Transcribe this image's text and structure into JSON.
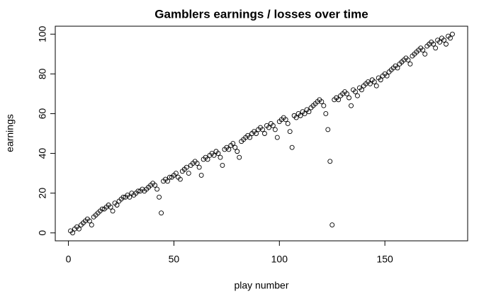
{
  "chart_data": {
    "type": "scatter",
    "title": "Gamblers earnings / losses over time",
    "x_label": "play number",
    "y_label": "earnings",
    "xlim": [
      -6.24,
      189.24
    ],
    "ylim": [
      -4,
      104
    ],
    "xticks": [
      0,
      50,
      100,
      150
    ],
    "yticks": [
      0,
      20,
      40,
      60,
      80,
      100
    ],
    "color": "#000000",
    "x": [
      1,
      2,
      3,
      4,
      5,
      6,
      7,
      8,
      9,
      10,
      11,
      12,
      13,
      14,
      15,
      16,
      17,
      18,
      19,
      20,
      21,
      22,
      23,
      24,
      25,
      26,
      27,
      28,
      29,
      30,
      31,
      32,
      33,
      34,
      35,
      36,
      37,
      38,
      39,
      40,
      41,
      42,
      43,
      44,
      45,
      46,
      47,
      48,
      49,
      50,
      51,
      52,
      53,
      54,
      55,
      56,
      57,
      58,
      59,
      60,
      61,
      62,
      63,
      64,
      65,
      66,
      67,
      68,
      69,
      70,
      71,
      72,
      73,
      74,
      75,
      76,
      77,
      78,
      79,
      80,
      81,
      82,
      83,
      84,
      85,
      86,
      87,
      88,
      89,
      90,
      91,
      92,
      93,
      94,
      95,
      96,
      97,
      98,
      99,
      100,
      101,
      102,
      103,
      104,
      105,
      106,
      107,
      108,
      109,
      110,
      111,
      112,
      113,
      114,
      115,
      116,
      117,
      118,
      119,
      120,
      121,
      122,
      123,
      124,
      125,
      126,
      127,
      128,
      129,
      130,
      131,
      132,
      133,
      134,
      135,
      136,
      137,
      138,
      139,
      140,
      141,
      142,
      143,
      144,
      145,
      146,
      147,
      148,
      149,
      150,
      151,
      152,
      153,
      154,
      155,
      156,
      157,
      158,
      159,
      160,
      161,
      162,
      163,
      164,
      165,
      166,
      167,
      168,
      169,
      170,
      171,
      172,
      173,
      174,
      175,
      176,
      177,
      178,
      179,
      180,
      181,
      182
    ],
    "values": [
      1,
      0,
      2,
      3,
      2,
      4,
      5,
      6,
      7,
      6,
      4,
      8,
      9,
      10,
      11,
      12,
      12,
      13,
      14,
      13,
      11,
      15,
      14,
      16,
      17,
      18,
      18,
      19,
      18,
      20,
      19,
      20,
      21,
      21,
      22,
      21,
      22,
      23,
      24,
      25,
      24,
      22,
      18,
      10,
      26,
      27,
      26,
      28,
      28,
      29,
      30,
      28,
      27,
      31,
      32,
      33,
      30,
      34,
      35,
      36,
      35,
      33,
      29,
      37,
      38,
      37,
      39,
      40,
      39,
      41,
      40,
      38,
      34,
      42,
      43,
      42,
      44,
      45,
      43,
      41,
      38,
      46,
      47,
      48,
      49,
      48,
      50,
      51,
      50,
      52,
      53,
      52,
      50,
      54,
      53,
      55,
      54,
      52,
      48,
      56,
      57,
      58,
      57,
      55,
      51,
      43,
      59,
      58,
      60,
      59,
      61,
      60,
      62,
      61,
      63,
      64,
      65,
      66,
      67,
      66,
      64,
      60,
      52,
      36,
      4,
      67,
      68,
      67,
      69,
      70,
      71,
      70,
      68,
      64,
      72,
      71,
      69,
      73,
      72,
      74,
      75,
      76,
      75,
      77,
      76,
      74,
      78,
      77,
      79,
      80,
      79,
      81,
      82,
      83,
      84,
      83,
      85,
      86,
      87,
      88,
      87,
      85,
      89,
      90,
      91,
      92,
      93,
      92,
      90,
      94,
      95,
      96,
      95,
      93,
      97,
      96,
      98,
      97,
      95,
      99,
      98,
      100
    ]
  }
}
